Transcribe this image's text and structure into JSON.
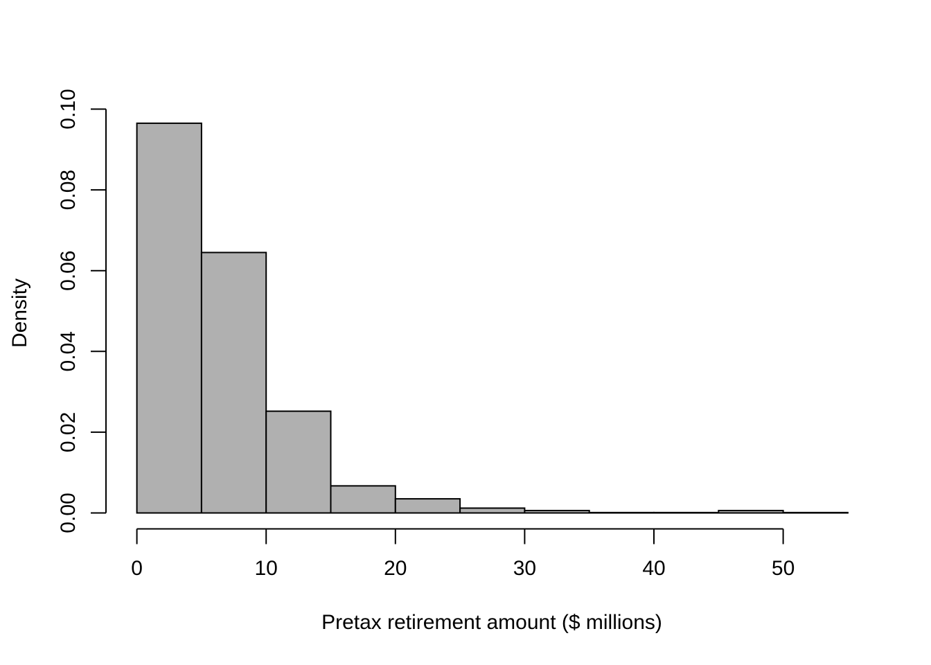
{
  "chart_data": {
    "type": "bar",
    "subtype": "histogram",
    "title": "",
    "xlabel": "Pretax retirement amount ($ millions)",
    "ylabel": "Density",
    "bin_width": 5,
    "bin_edges": [
      0,
      5,
      10,
      15,
      20,
      25,
      30,
      35,
      40,
      45,
      50,
      55
    ],
    "densities": [
      0.0965,
      0.0645,
      0.0252,
      0.0067,
      0.0035,
      0.0012,
      0.0006,
      0.0001,
      0.0001,
      0.0006,
      0.0001
    ],
    "x_ticks": [
      0,
      10,
      20,
      30,
      40,
      50
    ],
    "x_tick_labels": [
      "0",
      "10",
      "20",
      "30",
      "40",
      "50"
    ],
    "y_ticks": [
      0.0,
      0.02,
      0.04,
      0.06,
      0.08,
      0.1
    ],
    "y_tick_labels": [
      "0.00",
      "0.02",
      "0.04",
      "0.06",
      "0.08",
      "0.10"
    ],
    "xlim": [
      0,
      55
    ],
    "ylim": [
      0,
      0.1
    ],
    "grid": false,
    "legend": false,
    "colors": {
      "bar_fill": "#b0b0b0",
      "bar_stroke": "#000000",
      "axis": "#000000",
      "background": "#ffffff"
    }
  }
}
